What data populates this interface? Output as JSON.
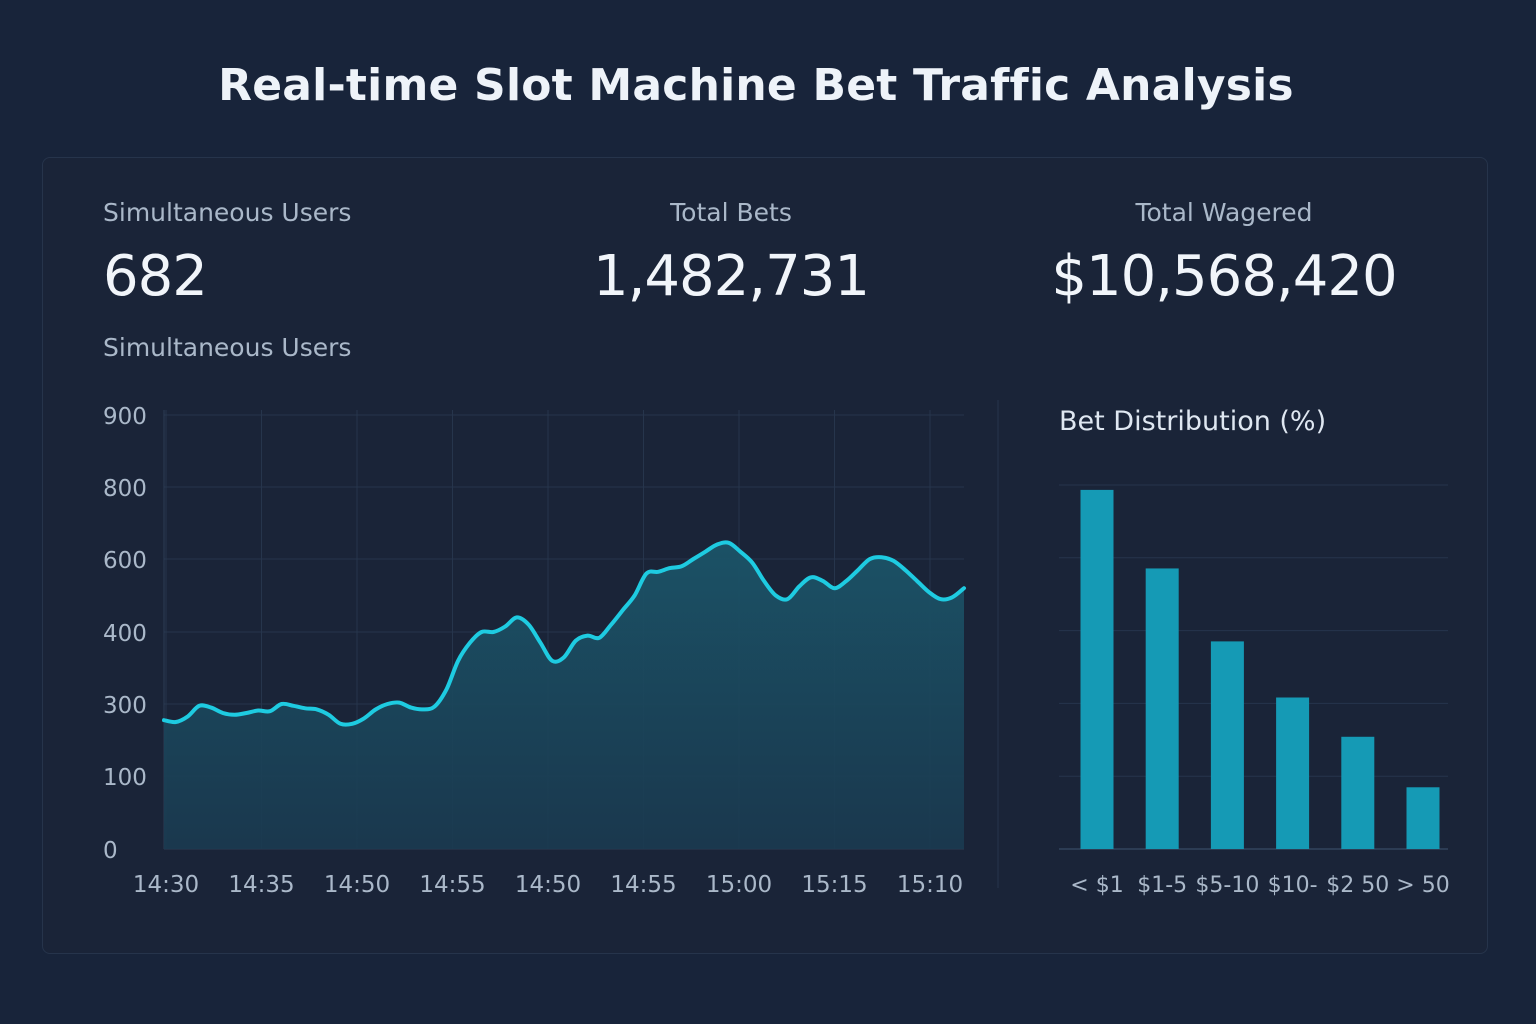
{
  "title": "Real-time Slot Machine Bet Traffic Analysis",
  "stats": {
    "users": {
      "label": "Simultaneous Users",
      "value": "682"
    },
    "bets": {
      "label": "Total Bets",
      "value": "1,482,731"
    },
    "wagered": {
      "label": "Total Wagered",
      "value": "$10,568,420"
    }
  },
  "colors": {
    "background": "#18243a",
    "line": "#1ecbe1",
    "area": "#1b4a5e",
    "bar": "#159ab5",
    "grid": "#26354c"
  },
  "chart_data": [
    {
      "type": "area",
      "title": "Simultaneous Users",
      "xlabel": "",
      "ylabel": "",
      "grid": true,
      "y_ticks": [
        "0",
        "100",
        "300",
        "400",
        "600",
        "800",
        "900"
      ],
      "x_ticks": [
        "14:30",
        "14:35",
        "14:50",
        "14:55",
        "14:50",
        "14:55",
        "15:00",
        "15:15",
        "15:10"
      ],
      "values": [
        255,
        250,
        265,
        295,
        290,
        275,
        270,
        275,
        282,
        280,
        300,
        295,
        288,
        285,
        270,
        245,
        245,
        260,
        285,
        300,
        302,
        290,
        285,
        293,
        320,
        360,
        385,
        400,
        400,
        415,
        440,
        420,
        385,
        360,
        365,
        388,
        395,
        392,
        420,
        460,
        500,
        560,
        565,
        575,
        580,
        600,
        620,
        640,
        645,
        620,
        590,
        540,
        500,
        490,
        525,
        550,
        540,
        520,
        540,
        570,
        600,
        605,
        595,
        570,
        540,
        510,
        490,
        495,
        520
      ]
    },
    {
      "type": "bar",
      "title": "Bet Distribution (%)",
      "categories": [
        "< $1",
        "$1-5",
        "$5-10",
        "$10-",
        "$2 50",
        "> 50"
      ],
      "values": [
        32,
        25,
        18.5,
        13.5,
        10,
        5.5
      ],
      "ylim": [
        0,
        36
      ],
      "grid": true
    }
  ]
}
